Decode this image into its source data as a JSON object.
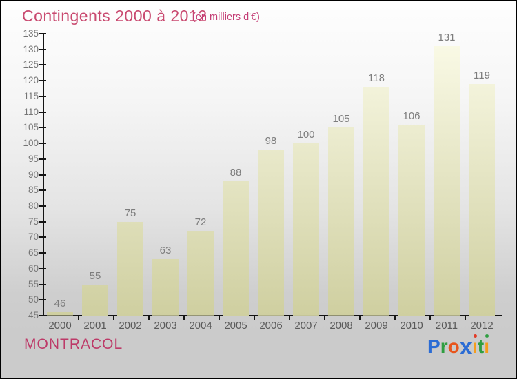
{
  "title": "Contingents 2000 à 2012",
  "subtitle": "(en milliers d'€)",
  "footer": {
    "company": "MONTRACOL"
  },
  "logo": {
    "name": "Proxiti",
    "letters": [
      {
        "ch": "P",
        "color": "#2b6cd4"
      },
      {
        "ch": "r",
        "color": "#2f9e41"
      },
      {
        "ch": "o",
        "color": "#e8551c"
      },
      {
        "ch": "x",
        "color": "#2b6cd4",
        "big": true
      },
      {
        "ch": "i",
        "color": "#f59d1c",
        "dot": "#e23b27"
      },
      {
        "ch": "t",
        "color": "#2f9e41"
      },
      {
        "ch": "i",
        "color": "#f59d1c",
        "dot": "#2f9e41"
      }
    ]
  },
  "colors": {
    "title_pink": "#c94a70",
    "subtitle_pink": "#c43d75",
    "company_pink": "#bd3a68",
    "bar_top": "#fbfbe8",
    "bar_bottom": "#cfcfa0",
    "axis": "#141414",
    "value_label": "#7d7d7d",
    "year_label": "#5a5a5a",
    "ytick_label": "#757575",
    "background_top": "#fefefe",
    "background_bottom": "#cbcbcb"
  },
  "chart_data": {
    "type": "bar",
    "title": "Contingents 2000 à 2012",
    "subtitle": "(en milliers d'€)",
    "xlabel": "",
    "ylabel": "",
    "categories": [
      "2000",
      "2001",
      "2002",
      "2003",
      "2004",
      "2005",
      "2006",
      "2007",
      "2008",
      "2009",
      "2010",
      "2011",
      "2012"
    ],
    "values": [
      46,
      55,
      75,
      63,
      72,
      88,
      98,
      100,
      105,
      118,
      106,
      131,
      119
    ],
    "ylim": [
      45,
      135
    ],
    "ytick_step": 5,
    "grid": false,
    "legend": false,
    "value_labels_shown": true
  }
}
